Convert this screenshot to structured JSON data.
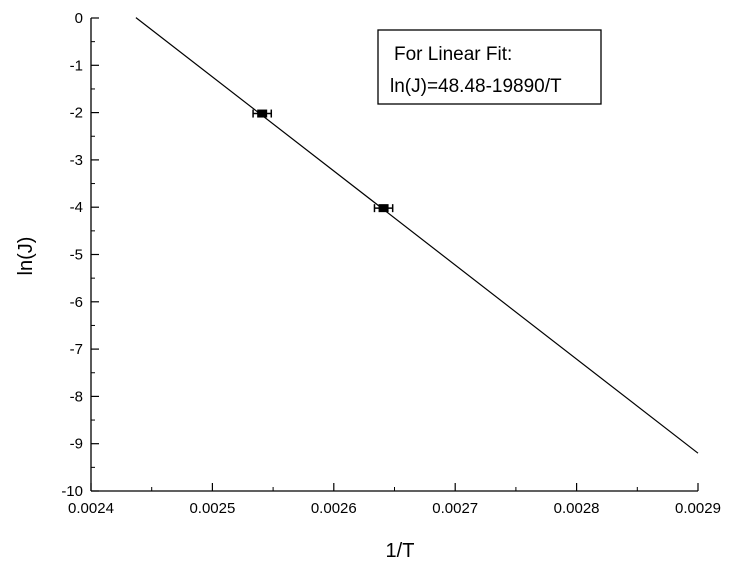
{
  "chart_data": {
    "type": "scatter",
    "xlabel": "1/T",
    "ylabel": "ln(J)",
    "xlim": [
      0.0024,
      0.0029
    ],
    "ylim": [
      -10,
      0
    ],
    "x_ticks": [
      "0.0024",
      "0.0025",
      "0.0026",
      "0.0027",
      "0.0028",
      "0.0029"
    ],
    "y_ticks": [
      "0",
      "-1",
      "-2",
      "-3",
      "-4",
      "-5",
      "-6",
      "-7",
      "-8",
      "-9",
      "-10"
    ],
    "grid": false,
    "points": [
      {
        "x": 0.002541,
        "y": -2.02,
        "x_error": 7.5e-06,
        "y_error": 0.07
      },
      {
        "x": 0.002641,
        "y": -4.02,
        "x_error": 7.5e-06,
        "y_error": 0.07
      }
    ],
    "fit_line": {
      "intercept": 48.48,
      "slope": -19890,
      "x_range": [
        0.002437,
        0.0029
      ]
    },
    "legend": {
      "placement": "top-right",
      "title": "For Linear Fit:",
      "equation": "ln(J)=48.48-19890/T"
    }
  }
}
